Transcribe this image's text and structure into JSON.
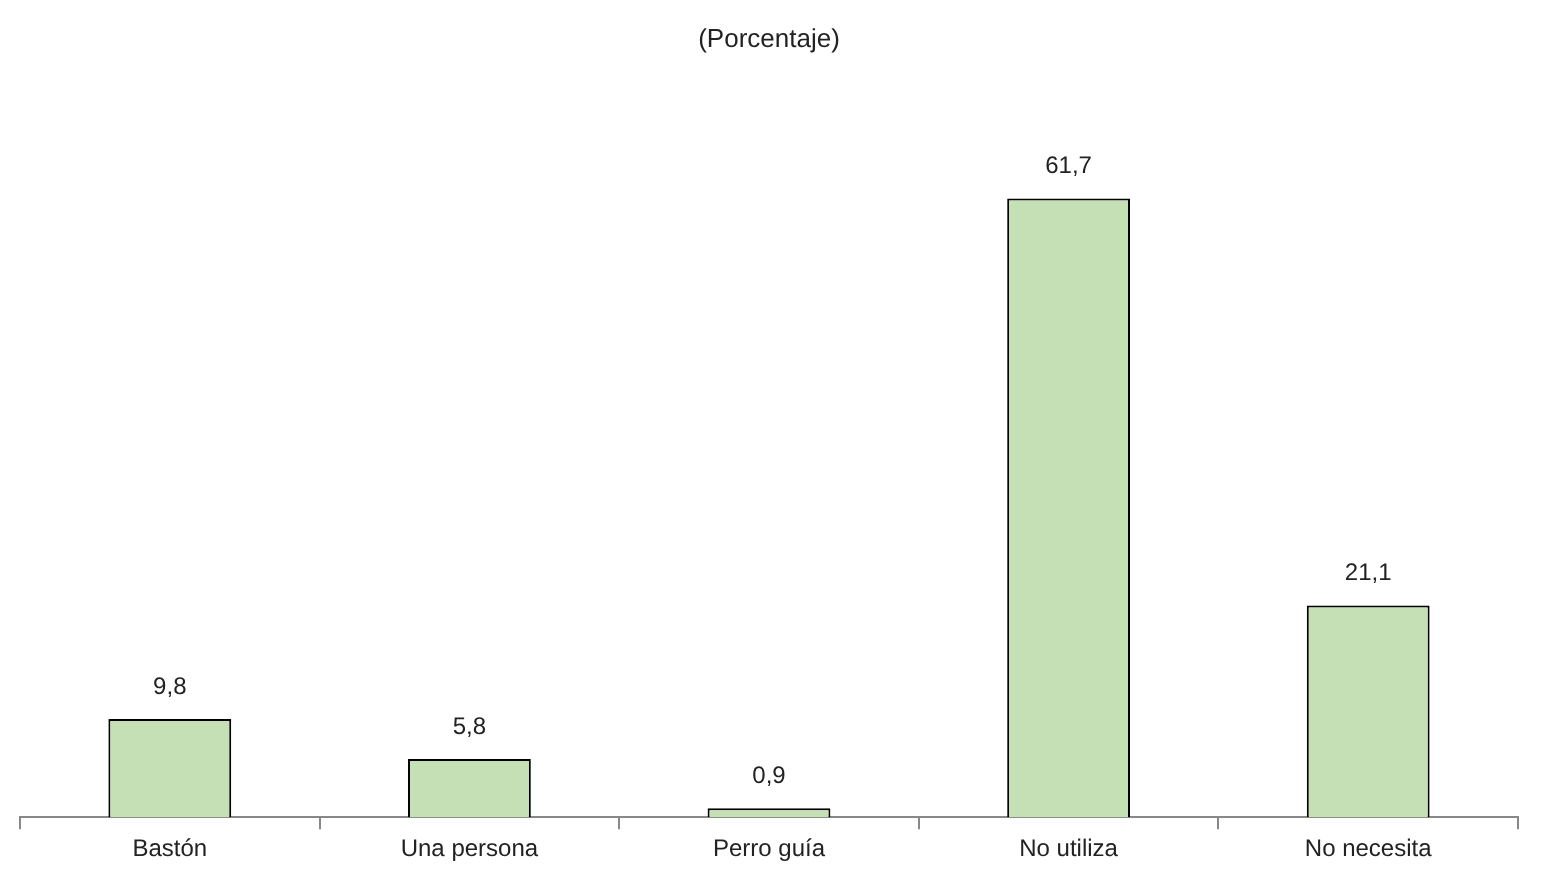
{
  "chart_data": {
    "type": "bar",
    "title": "(Porcentaje)",
    "categories": [
      "Bastón",
      "Una persona",
      "Perro guía",
      "No utiliza",
      "No necesita"
    ],
    "values": [
      9.8,
      5.8,
      0.9,
      61.7,
      21.1
    ],
    "value_labels": [
      "9,8",
      "5,8",
      "0,9",
      "61,7",
      "21,1"
    ],
    "color": "#c5e0b4"
  }
}
